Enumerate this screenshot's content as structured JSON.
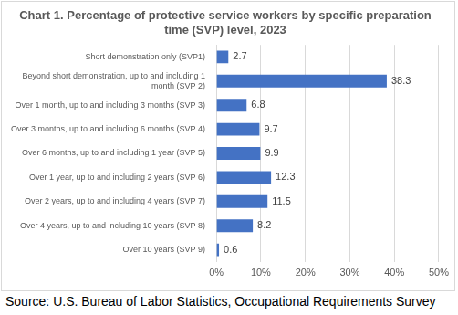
{
  "chart_data": {
    "type": "bar",
    "orientation": "horizontal",
    "title": "Chart 1. Percentage of protective service workers by specific preparation time (SVP) level, 2023",
    "source": "Source: U.S. Bureau of Labor Statistics, Occupational Requirements Survey",
    "categories": [
      "Short demonstration only (SVP1)",
      "Beyond short demonstration, up to and including 1 month (SVP 2)",
      "Over 1 month, up to and including 3 months (SVP 3)",
      "Over 3 months, up to and including 6 months (SVP 4)",
      "Over 6 months, up to and including 1 year (SVP 5)",
      "Over 1 year, up to and including 2 years (SVP 6)",
      "Over 2 years, up to and including 4 years (SVP 7)",
      "Over 4 years, up to and including 10 years (SVP 8)",
      "Over 10 years (SVP 9)"
    ],
    "values": [
      2.7,
      38.3,
      6.8,
      9.7,
      9.9,
      12.3,
      11.5,
      8.2,
      0.6
    ],
    "color": "#4472c4",
    "xlim": [
      0,
      50
    ],
    "xticks": [
      {
        "value": 0,
        "label": "0%"
      },
      {
        "value": 10,
        "label": "10%"
      },
      {
        "value": 20,
        "label": "20%"
      },
      {
        "value": 30,
        "label": "30%"
      },
      {
        "value": 40,
        "label": "40%"
      },
      {
        "value": 50,
        "label": "50%"
      }
    ],
    "grid": true,
    "data_labels": true
  }
}
